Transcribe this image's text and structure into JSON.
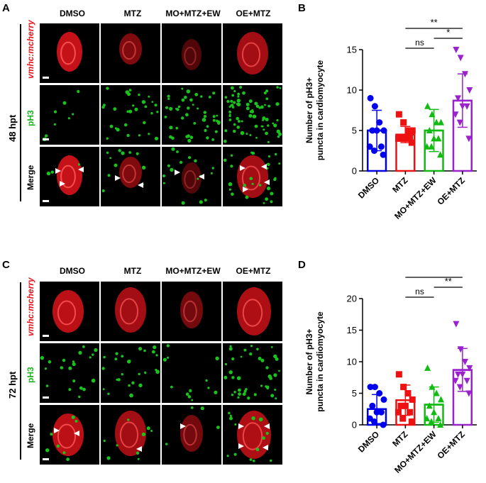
{
  "figure": {
    "panels": [
      {
        "letter": "A",
        "timepoint": "48 hpt"
      },
      {
        "letter": "C",
        "timepoint": "72 hpt"
      }
    ],
    "chart_panels": [
      "B",
      "D"
    ],
    "column_labels": [
      "DMSO",
      "MTZ",
      "MO+MTZ+EW",
      "OE+MTZ"
    ],
    "row_labels": [
      "vmhc:mcherry",
      "pH3",
      "Merge"
    ],
    "channel_colors": {
      "mcherry": "#e8141c",
      "pH3": "#18c41c"
    }
  },
  "chart_data": [
    {
      "type": "bar",
      "panel": "B",
      "categories": [
        "DMSO",
        "MTZ",
        "MO+MTZ+EW",
        "OE+MTZ"
      ],
      "values": [
        5.0,
        4.5,
        5.0,
        8.7
      ],
      "errors": [
        2.5,
        1.0,
        2.6,
        3.3
      ],
      "points": [
        [
          9,
          8,
          6,
          5,
          5,
          5,
          3,
          3,
          2.5,
          2
        ],
        [
          7,
          6,
          5,
          5,
          4,
          4,
          4,
          4,
          4,
          3.5
        ],
        [
          8,
          7,
          6,
          6,
          5,
          4,
          4,
          3,
          3,
          2
        ],
        [
          15,
          14,
          12,
          10,
          9,
          8,
          8,
          7,
          6,
          4
        ]
      ],
      "colors": [
        "#0000ee",
        "#ee1111",
        "#11bb11",
        "#9922cc"
      ],
      "markers": [
        "circle",
        "square",
        "triangle",
        "triangle-down"
      ],
      "ylabel": "Number of pH3+ puncta in cardiomyocyte",
      "ylim": [
        0,
        15
      ],
      "yticks": [
        0,
        5,
        10,
        15
      ],
      "significance": [
        {
          "from": 1,
          "to": 3,
          "label": "**"
        },
        {
          "from": 1,
          "to": 2,
          "label": "ns"
        },
        {
          "from": 2,
          "to": 3,
          "label": "*"
        }
      ]
    },
    {
      "type": "bar",
      "panel": "D",
      "categories": [
        "DMSO",
        "MTZ",
        "MO+MTZ+EW",
        "OE+MTZ"
      ],
      "values": [
        2.5,
        3.9,
        3.2,
        8.7
      ],
      "errors": [
        2.3,
        2.4,
        2.8,
        3.4
      ],
      "points": [
        [
          6,
          6,
          5,
          4,
          3,
          2,
          2,
          1,
          0.5,
          0
        ],
        [
          8,
          6,
          5,
          4,
          3,
          3,
          2,
          2,
          1,
          0.5
        ],
        [
          9,
          6,
          5,
          4,
          3,
          2,
          1,
          1,
          0.5,
          0
        ],
        [
          16,
          12,
          10,
          9,
          8,
          8,
          7,
          7,
          6,
          5
        ]
      ],
      "colors": [
        "#0000ee",
        "#ee1111",
        "#11bb11",
        "#9922cc"
      ],
      "markers": [
        "circle",
        "square",
        "triangle",
        "triangle-down"
      ],
      "ylabel": "Number of pH3+ puncta in cardiomyocyte",
      "ylim": [
        0,
        20
      ],
      "yticks": [
        0,
        5,
        10,
        15,
        20
      ],
      "significance": [
        {
          "from": 1,
          "to": 3,
          "label": "**"
        },
        {
          "from": 1,
          "to": 2,
          "label": "ns"
        },
        {
          "from": 2,
          "to": 3,
          "label": "**"
        }
      ]
    }
  ]
}
